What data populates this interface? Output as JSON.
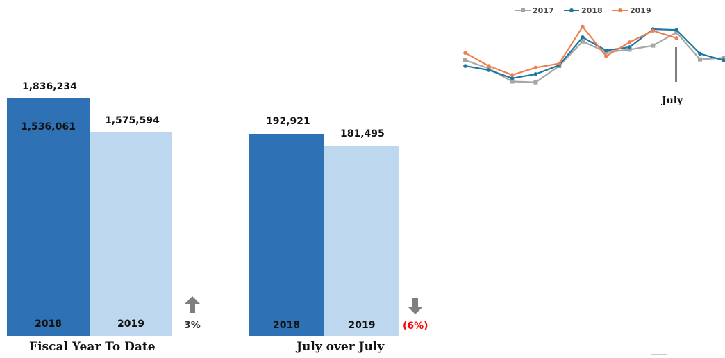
{
  "chart_data": [
    {
      "type": "bar",
      "caption": "Fiscal Year To Date",
      "categories": [
        "2018",
        "2019"
      ],
      "values": [
        1836234,
        1575594
      ],
      "value_labels": [
        "1,836,234",
        "1,575,594"
      ],
      "reference_value": 1536061,
      "reference_label": "1,536,061",
      "change_label": "3%",
      "change_direction": "up",
      "change_color": "#333333",
      "colors": [
        "#2e72b5",
        "#bdd7ee"
      ],
      "ylim": [
        0,
        1836234
      ]
    },
    {
      "type": "bar",
      "caption": "July over July",
      "categories": [
        "2018",
        "2019"
      ],
      "values": [
        192921,
        181495
      ],
      "value_labels": [
        "192,921",
        "181,495"
      ],
      "change_label": "(6%)",
      "change_direction": "down",
      "change_color": "#ff0000",
      "colors": [
        "#2e72b5",
        "#bdd7ee"
      ],
      "ylim": [
        0,
        192921
      ]
    },
    {
      "type": "line",
      "legend": [
        "2017",
        "2018",
        "2019"
      ],
      "legend_position": "top",
      "annotation": "July",
      "series": [
        {
          "name": "2017",
          "color": "#a6a6a6",
          "values": [
            0.62,
            0.52,
            0.36,
            0.35,
            0.55,
            0.85,
            0.72,
            0.75,
            0.8,
            0.96,
            0.63,
            0.65
          ]
        },
        {
          "name": "2018",
          "color": "#1f77a0",
          "values": [
            0.55,
            0.5,
            0.4,
            0.45,
            0.56,
            0.9,
            0.74,
            0.78,
            1.0,
            0.99,
            0.7,
            0.62
          ]
        },
        {
          "name": "2019",
          "color": "#f07f4f",
          "values": [
            0.71,
            0.55,
            0.44,
            0.53,
            0.58,
            1.03,
            0.67,
            0.84,
            0.98,
            0.89
          ]
        }
      ]
    }
  ]
}
